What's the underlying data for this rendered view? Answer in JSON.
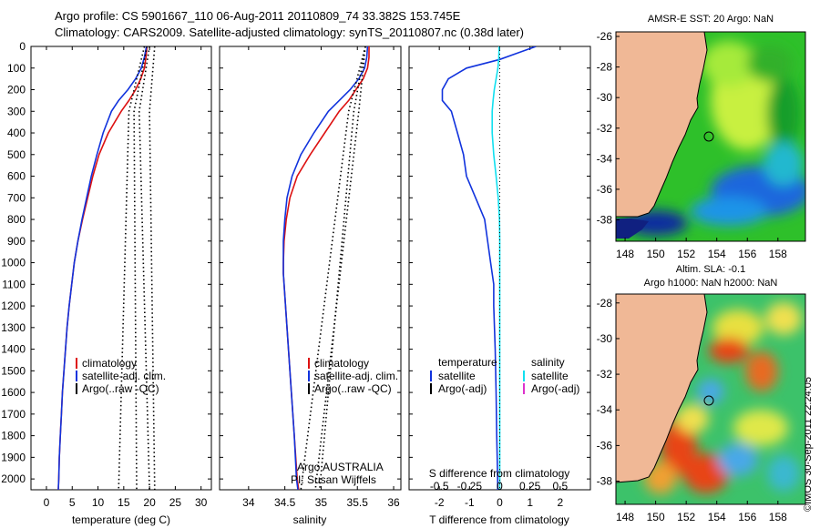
{
  "header": {
    "line1": "Argo profile: CS 5901667_110 06-Aug-2011 20110809_74 33.382S 153.745E",
    "line2": "Climatology: CARS2009. Satellite-adjusted climatology: synTS_20110807.nc (0.38d later)"
  },
  "colors": {
    "climatology": "#dd1111",
    "satellite": "#1133dd",
    "argo": "#000000",
    "satellite_salinity": "#11e0f0",
    "argo_salinity_adj": "#dd33cc",
    "land": "#f0b896"
  },
  "chart_data": [
    {
      "type": "line",
      "xlabel": "temperature (deg C)",
      "ylabel": "",
      "xlim": [
        -3,
        32
      ],
      "ylim": [
        2050,
        0
      ],
      "xticks": [
        0,
        5,
        10,
        15,
        20,
        25,
        30
      ],
      "yticks": [
        0,
        100,
        200,
        300,
        400,
        500,
        600,
        700,
        800,
        900,
        1000,
        1100,
        1200,
        1300,
        1400,
        1500,
        1600,
        1700,
        1800,
        1900,
        2000
      ],
      "legend": [
        "climatology",
        "satellite-adj. clim.",
        "Argo(..raw -QC)"
      ],
      "series": [
        {
          "name": "climatology",
          "color": "#dd1111",
          "depth": [
            0,
            50,
            100,
            150,
            200,
            250,
            300,
            400,
            500,
            600,
            700,
            800,
            900,
            1000,
            1100,
            1200,
            1300,
            1400,
            1500,
            1600,
            1700,
            1800,
            1900,
            2000,
            2050
          ],
          "values": [
            19.5,
            19.3,
            19.0,
            18.3,
            17.3,
            16.0,
            14.5,
            12.0,
            10.2,
            9.0,
            8.0,
            7.0,
            6.1,
            5.4,
            4.9,
            4.4,
            4.0,
            3.7,
            3.4,
            3.1,
            2.9,
            2.7,
            2.5,
            2.4,
            2.3
          ]
        },
        {
          "name": "satellite-adj. clim.",
          "color": "#1133dd",
          "depth": [
            0,
            50,
            100,
            150,
            200,
            250,
            300,
            400,
            500,
            600,
            700,
            800,
            900,
            1000,
            1100,
            1200,
            1300,
            1400,
            1500,
            1600,
            1700,
            1800,
            1900,
            2000,
            2050
          ],
          "values": [
            19.4,
            19.0,
            18.4,
            17.3,
            15.8,
            14.0,
            12.6,
            11.0,
            9.8,
            8.7,
            7.8,
            6.9,
            6.1,
            5.4,
            4.9,
            4.4,
            4.0,
            3.7,
            3.4,
            3.1,
            2.9,
            2.7,
            2.5,
            2.4,
            2.3
          ]
        },
        {
          "name": "Argo raw 1",
          "color": "#000000",
          "depth": [
            0,
            300,
            2050
          ],
          "values": [
            21.0,
            20.0,
            21.0
          ]
        },
        {
          "name": "Argo raw 2",
          "color": "#000000",
          "depth": [
            0,
            300,
            2050
          ],
          "values": [
            20.0,
            18.0,
            20.0
          ]
        },
        {
          "name": "Argo raw 3",
          "color": "#000000",
          "depth": [
            0,
            300,
            2050
          ],
          "values": [
            19.5,
            17.0,
            17.5
          ]
        },
        {
          "name": "Argo raw 4",
          "color": "#000000",
          "depth": [
            0,
            300,
            2050
          ],
          "values": [
            19.0,
            16.0,
            14.0
          ]
        }
      ]
    },
    {
      "type": "line",
      "xlabel": "salinity",
      "xlim": [
        33.6,
        36.1
      ],
      "ylim": [
        2050,
        0
      ],
      "xticks": [
        34,
        34.5,
        35,
        35.5,
        36
      ],
      "xticklabels": [
        "34",
        "34.5",
        "35",
        "35.5",
        "36"
      ],
      "legend": [
        "climatology",
        "satellite-adj. clim.",
        "Argo(..raw -QC)"
      ],
      "annotations": [
        "Argo AUSTRALIA",
        "PI: Susan Wijffels"
      ],
      "series": [
        {
          "name": "climatology",
          "color": "#dd1111",
          "depth": [
            0,
            50,
            100,
            150,
            200,
            250,
            300,
            400,
            500,
            600,
            700,
            800,
            900,
            1000,
            1050,
            1200,
            1400,
            1600,
            1800,
            2000,
            2050
          ],
          "values": [
            35.66,
            35.66,
            35.64,
            35.58,
            35.48,
            35.38,
            35.25,
            35.05,
            34.85,
            34.67,
            34.57,
            34.52,
            34.49,
            34.48,
            34.48,
            34.51,
            34.55,
            34.59,
            34.63,
            34.67,
            34.69
          ]
        },
        {
          "name": "satellite-adj. clim.",
          "color": "#1133dd",
          "depth": [
            0,
            50,
            100,
            150,
            200,
            250,
            300,
            400,
            500,
            600,
            700,
            800,
            900,
            1000,
            1050,
            1200,
            1400,
            1600,
            1800,
            2000,
            2050
          ],
          "values": [
            35.64,
            35.63,
            35.6,
            35.52,
            35.4,
            35.25,
            35.1,
            34.9,
            34.72,
            34.6,
            34.53,
            34.5,
            34.48,
            34.48,
            34.48,
            34.51,
            34.55,
            34.59,
            34.63,
            34.66,
            34.68
          ]
        },
        {
          "name": "Argo raw 1",
          "color": "#000000",
          "depth": [
            0,
            300,
            2050
          ],
          "values": [
            35.61,
            35.52,
            34.92
          ]
        },
        {
          "name": "Argo raw 2",
          "color": "#000000",
          "depth": [
            0,
            300,
            2050
          ],
          "values": [
            35.61,
            35.45,
            34.98
          ]
        },
        {
          "name": "Argo raw 3",
          "color": "#000000",
          "depth": [
            0,
            300,
            2050
          ],
          "values": [
            35.61,
            35.38,
            34.72
          ]
        }
      ]
    },
    {
      "type": "line",
      "xlabel": "T difference from climatology",
      "xlim": [
        -3,
        3
      ],
      "ylim": [
        2050,
        0
      ],
      "xticks": [
        -2,
        -1,
        0,
        1,
        2
      ],
      "xticklabels": [
        "-2",
        "-1",
        "0",
        "1",
        "2"
      ],
      "top_xlabel": "S difference from climatology",
      "top_xticklabels": [
        "-0.5",
        "-0.25",
        "0",
        "0.25",
        "0.5"
      ],
      "legend_titles": [
        "temperature",
        "salinity"
      ],
      "legend": [
        "satellite",
        "Argo(-adj)",
        "satellite",
        "Argo(-adj)"
      ],
      "series": [
        {
          "name": "T satellite",
          "color": "#1133dd",
          "depth": [
            0,
            30,
            60,
            100,
            150,
            200,
            250,
            300,
            400,
            500,
            600,
            700,
            800,
            900,
            1000,
            1100,
            1200,
            1400,
            1600,
            1800,
            2000,
            2050
          ],
          "values": [
            1.2,
            0.6,
            0.0,
            -1.1,
            -1.7,
            -1.9,
            -1.9,
            -1.6,
            -1.4,
            -1.2,
            -1.1,
            -0.8,
            -0.5,
            -0.4,
            -0.3,
            -0.2,
            -0.2,
            -0.15,
            -0.12,
            -0.1,
            -0.07,
            -0.07
          ]
        },
        {
          "name": "S satellite",
          "color": "#11e0f0",
          "depth": [
            0,
            50,
            100,
            150,
            200,
            250,
            300,
            400,
            500,
            600,
            700,
            800,
            900,
            1000,
            1200,
            1400,
            1600,
            1800,
            2000,
            2050
          ],
          "values": [
            -0.02,
            -0.03,
            -0.06,
            -0.12,
            -0.18,
            -0.22,
            -0.25,
            -0.25,
            -0.2,
            -0.12,
            -0.05,
            -0.01,
            0.0,
            0.0,
            0.0,
            0.0,
            0.0,
            0.0,
            0.0,
            0.0
          ]
        }
      ]
    }
  ],
  "maps": {
    "xticks": [
      "148",
      "150",
      "152",
      "154",
      "156",
      "158"
    ],
    "yticks": [
      "-26",
      "-28",
      "-30",
      "-32",
      "-34",
      "-36",
      "-38"
    ],
    "map1_title": "AMSR-E SST: 20 Argo: NaN",
    "map2_title1": "Altim. SLA: -0.1",
    "map2_title2": "Argo h1000: NaN h2000: NaN"
  },
  "watermark": "©IMOS 30-Sep-2011 22:24:05",
  "depth_tick_labels": [
    "0",
    "100",
    "200",
    "300",
    "400",
    "500",
    "600",
    "700",
    "800",
    "900",
    "1000",
    "1100",
    "1200",
    "1300",
    "1400",
    "1500",
    "1600",
    "1700",
    "1800",
    "1900",
    "2000"
  ],
  "panel_tick_labels": {
    "temperature": [
      "0",
      "5",
      "10",
      "15",
      "20",
      "25",
      "30"
    ],
    "salinity": [
      "34",
      "34.5",
      "35",
      "35.5",
      "36"
    ],
    "tdiff": [
      "-2",
      "-1",
      "0",
      "1",
      "2"
    ]
  },
  "legend_text": {
    "climatology": "climatology",
    "satellite_clim": "satellite-adj. clim.",
    "argo_raw": "Argo(..raw -QC)",
    "temperature": "temperature",
    "salinity": "salinity",
    "satellite": "satellite",
    "argo_adj": "Argo(-adj)"
  },
  "annotation": {
    "argo": "Argo AUSTRALIA",
    "pi": "PI: Susan Wijffels"
  }
}
